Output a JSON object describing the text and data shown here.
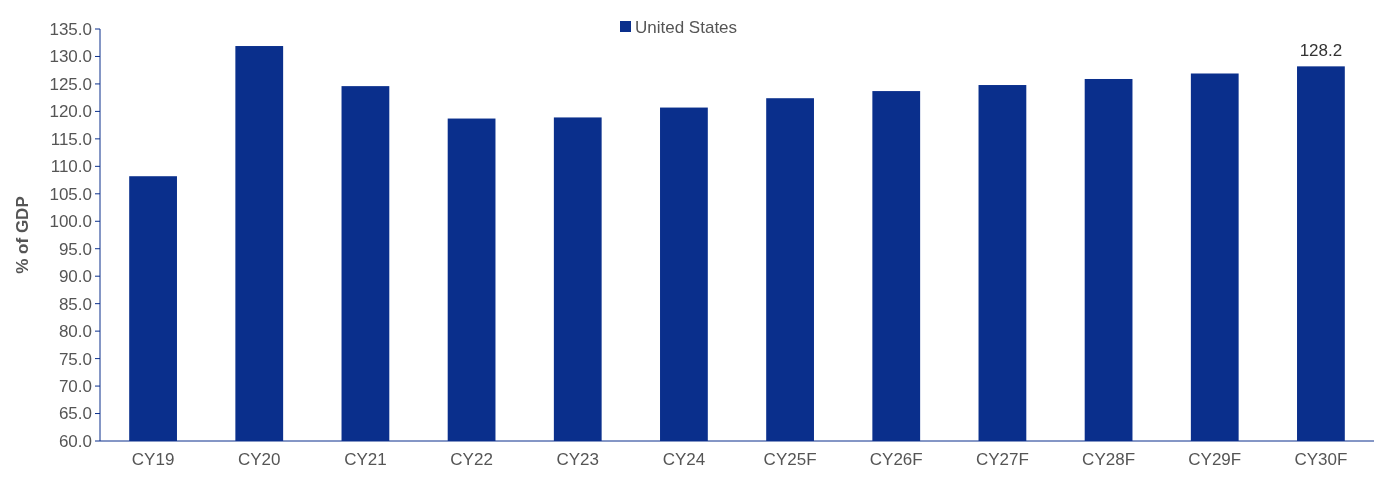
{
  "chart_data": {
    "type": "bar",
    "ylabel": "% of GDP",
    "categories": [
      "CY19",
      "CY20",
      "CY21",
      "CY22",
      "CY23",
      "CY24",
      "CY25F",
      "CY26F",
      "CY27F",
      "CY28F",
      "CY29F",
      "CY30F"
    ],
    "series": [
      {
        "name": "United States",
        "color": "#0a2f8c",
        "values": [
          108.2,
          131.9,
          124.6,
          118.7,
          118.9,
          120.7,
          122.4,
          123.7,
          124.8,
          125.9,
          126.9,
          128.2
        ],
        "value_labels": [
          null,
          null,
          null,
          null,
          null,
          null,
          null,
          null,
          null,
          null,
          null,
          "128.2"
        ]
      }
    ],
    "ylim": [
      60,
      135
    ],
    "yticks": [
      {
        "value": 60,
        "label": "60.0"
      },
      {
        "value": 65,
        "label": "65.0"
      },
      {
        "value": 70,
        "label": "70.0"
      },
      {
        "value": 75,
        "label": "75.0"
      },
      {
        "value": 80,
        "label": "80.0"
      },
      {
        "value": 85,
        "label": "85.0"
      },
      {
        "value": 90,
        "label": "90.0"
      },
      {
        "value": 95,
        "label": "95.0"
      },
      {
        "value": 100,
        "label": "100.0"
      },
      {
        "value": 105,
        "label": "105.0"
      },
      {
        "value": 110,
        "label": "110.0"
      },
      {
        "value": 115,
        "label": "115.0"
      },
      {
        "value": 120,
        "label": "120.0"
      },
      {
        "value": 125,
        "label": "125.0"
      },
      {
        "value": 130,
        "label": "130.0"
      },
      {
        "value": 135,
        "label": "135.0"
      }
    ],
    "legend": "top",
    "grid": false
  }
}
